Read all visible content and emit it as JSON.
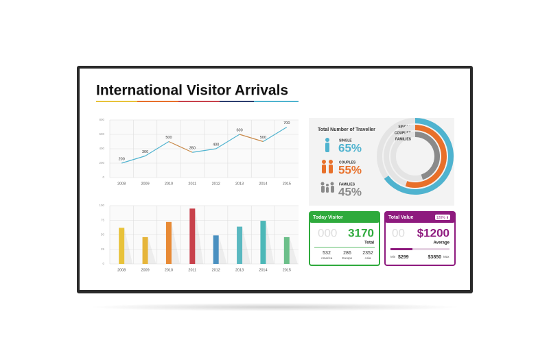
{
  "title": "International Visitor Arrivals",
  "chart_data": [
    {
      "type": "line",
      "categories": [
        "2008",
        "2009",
        "2010",
        "2011",
        "2012",
        "2013",
        "2014",
        "2015"
      ],
      "values": [
        200,
        300,
        500,
        350,
        400,
        600,
        500,
        700
      ],
      "color": "#4fb3cf",
      "decrease_color": "#c98a4a",
      "ylim": [
        0,
        800
      ],
      "yticks": [
        0,
        200,
        400,
        600,
        800
      ],
      "grid": true
    },
    {
      "type": "bar",
      "categories": [
        "2008",
        "2009",
        "2010",
        "2011",
        "2012",
        "2013",
        "2014",
        "2015"
      ],
      "values": [
        62,
        46,
        72,
        95,
        49,
        64,
        74,
        46
      ],
      "colors": [
        "#e8c23a",
        "#e6b53a",
        "#e88a35",
        "#c8414b",
        "#4a90c0",
        "#5ab8c0",
        "#4cb8b8",
        "#6cbf8a"
      ],
      "ylim": [
        0,
        100
      ],
      "yticks": [
        0,
        25,
        50,
        75,
        100
      ],
      "grid": true
    },
    {
      "type": "donut",
      "title": "Total Number of Traveller",
      "categories": [
        "SINGLE",
        "COUPLES",
        "FAMILIES"
      ],
      "values": [
        65,
        55,
        45
      ],
      "value_labels": [
        "65%",
        "55%",
        "45%"
      ],
      "colors": [
        "#4fb3cf",
        "#e8702a",
        "#8a8a8a"
      ]
    }
  ],
  "today_visitor": {
    "title": "Today Visitor",
    "prefix": "000",
    "total": 3170,
    "total_label": "Total",
    "regions": [
      {
        "value": 532,
        "label": "America"
      },
      {
        "value": 286,
        "label": "Europe"
      },
      {
        "value": 2352,
        "label": "Asia"
      }
    ]
  },
  "total_value": {
    "title": "Total Value",
    "badge": "120% ⬆",
    "prefix": "00",
    "average": "$1200",
    "average_label": "Average",
    "min_label": "Min",
    "min": "$299",
    "max": "$3850",
    "max_label": "Max"
  }
}
